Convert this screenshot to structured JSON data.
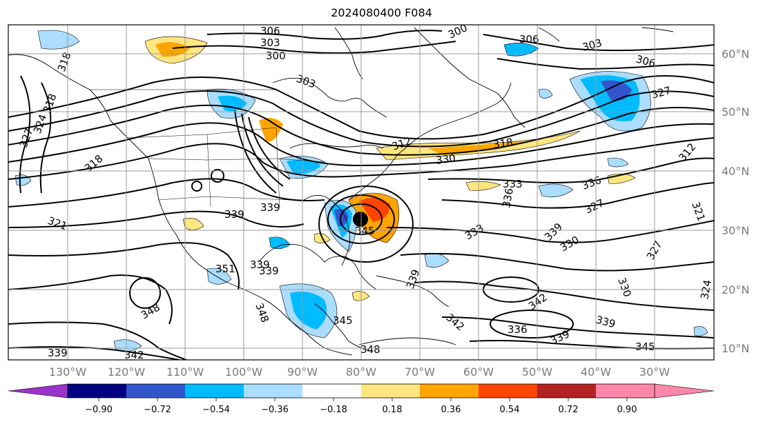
{
  "title": "2024080400 F084",
  "lat_labels": [
    "60°N",
    "50°N",
    "40°N",
    "30°N",
    "20°N",
    "10°N"
  ],
  "lon_labels": [
    "130°W",
    "120°W",
    "110°W",
    "100°W",
    "90°W",
    "80°W",
    "70°W",
    "60°W",
    "50°W",
    "40°W",
    "30°W"
  ],
  "colorbar": {
    "tick_labels": [
      "−0.90",
      "−0.72",
      "−0.54",
      "−0.36",
      "−0.18",
      "0.18",
      "0.36",
      "0.54",
      "0.72",
      "0.90"
    ],
    "colors": [
      "#9933cc",
      "#000080",
      "#3355cc",
      "#00bbff",
      "#aaddff",
      "#ffffff",
      "#ffe680",
      "#ffa500",
      "#ff4500",
      "#b22222",
      "#ff88aa"
    ]
  },
  "contour_labels": [
    {
      "text": "306"
    },
    {
      "text": "303"
    },
    {
      "text": "300"
    },
    {
      "text": "300"
    },
    {
      "text": "306"
    },
    {
      "text": "303"
    },
    {
      "text": "306"
    },
    {
      "text": "327"
    },
    {
      "text": "303"
    },
    {
      "text": "318"
    },
    {
      "text": "318"
    },
    {
      "text": "327"
    },
    {
      "text": "324"
    },
    {
      "text": "318"
    },
    {
      "text": "312"
    },
    {
      "text": "330"
    },
    {
      "text": "318"
    },
    {
      "text": "312"
    },
    {
      "text": "333"
    },
    {
      "text": "336"
    },
    {
      "text": "327"
    },
    {
      "text": "339"
    },
    {
      "text": "339"
    },
    {
      "text": "345"
    },
    {
      "text": "333"
    },
    {
      "text": "339"
    },
    {
      "text": "330"
    },
    {
      "text": "321"
    },
    {
      "text": "351"
    },
    {
      "text": "339"
    },
    {
      "text": "339"
    },
    {
      "text": "348"
    },
    {
      "text": "348"
    },
    {
      "text": "345"
    },
    {
      "text": "339"
    },
    {
      "text": "342"
    },
    {
      "text": "336"
    },
    {
      "text": "339"
    },
    {
      "text": "345"
    },
    {
      "text": "342"
    },
    {
      "text": "339"
    },
    {
      "text": "339"
    },
    {
      "text": "348"
    },
    {
      "text": "324"
    },
    {
      "text": "330"
    },
    {
      "text": "327"
    },
    {
      "text": "321"
    },
    {
      "text": "336"
    }
  ]
}
